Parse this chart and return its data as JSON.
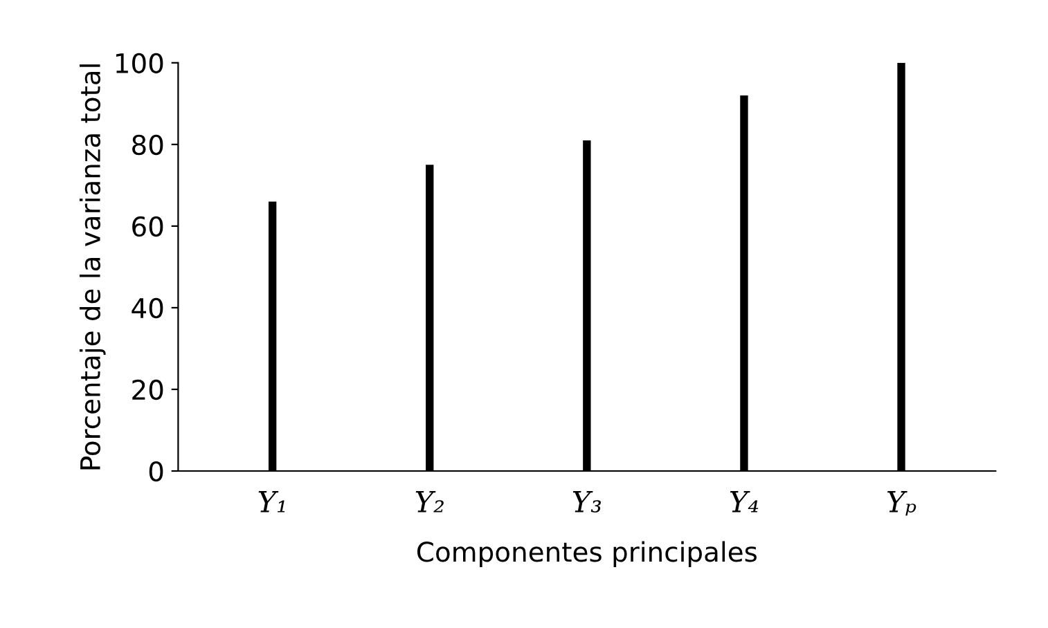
{
  "chart_data": {
    "type": "bar",
    "xlabel": "Componentes principales",
    "ylabel": "Porcentaje de la varianza total",
    "categories": [
      "Y₁",
      "Y₂",
      "Y₃",
      "Y₄",
      "Yₚ"
    ],
    "values": [
      66,
      75,
      81,
      92,
      100
    ],
    "color": "#000000",
    "ylim": [
      0,
      100
    ],
    "yticks": [
      0,
      20,
      40,
      60,
      80,
      100
    ],
    "grid": false
  }
}
